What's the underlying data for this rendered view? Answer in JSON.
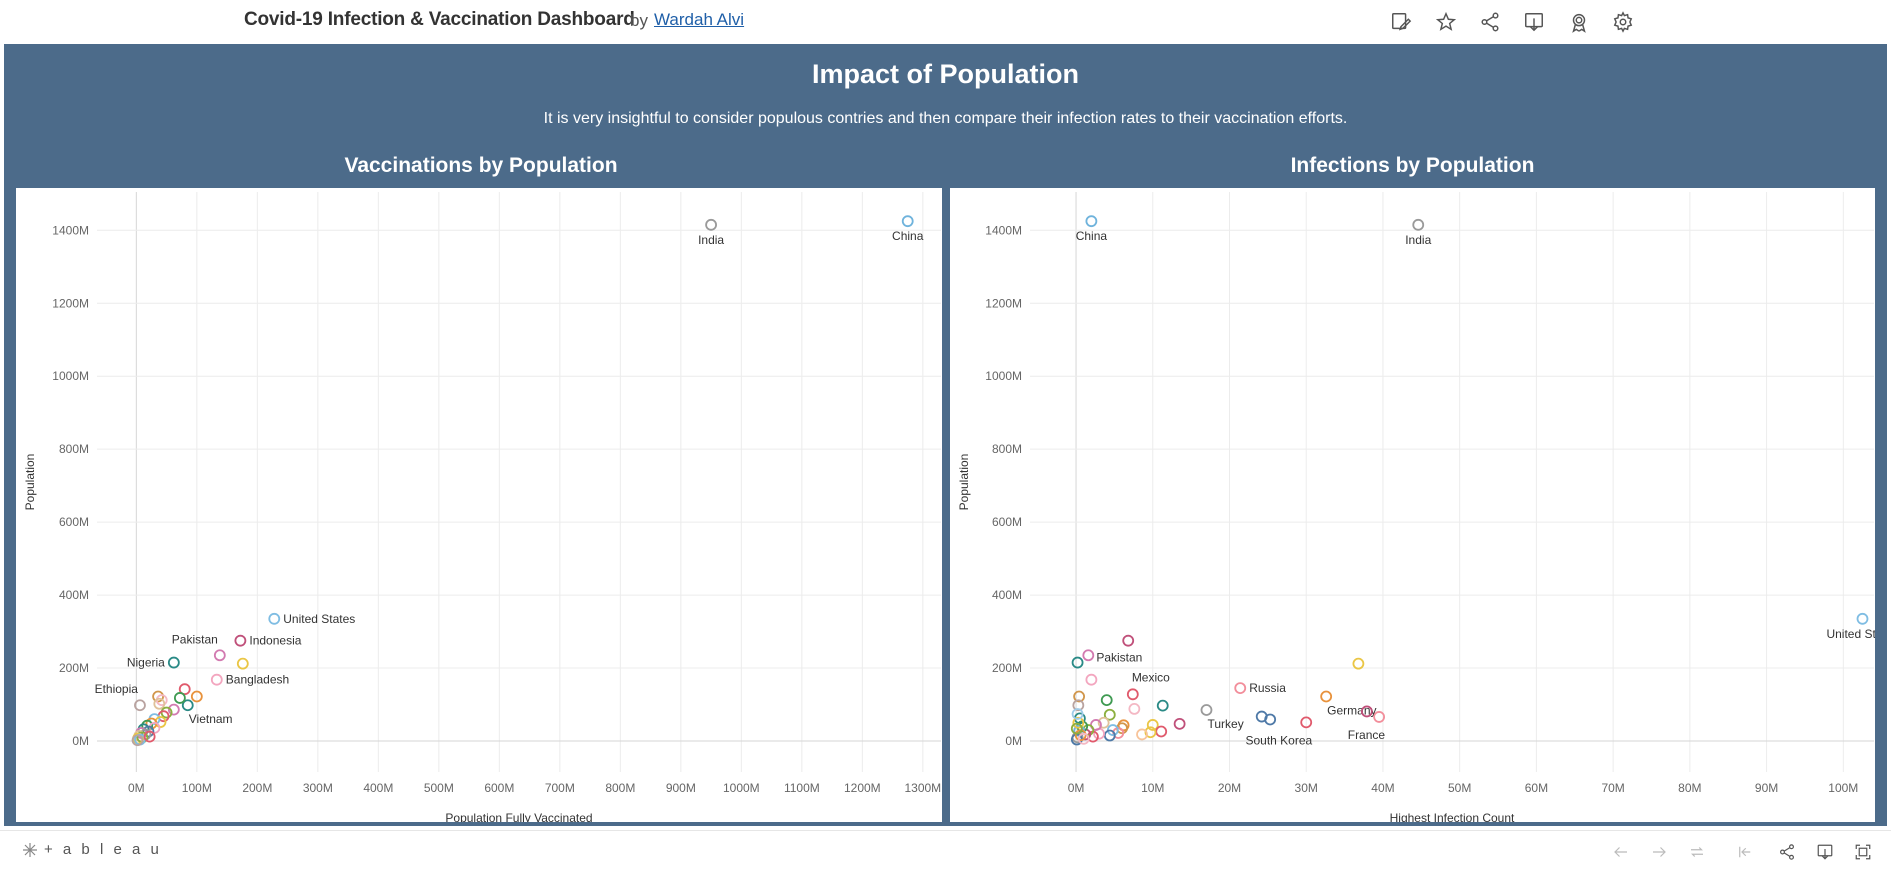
{
  "header": {
    "title": "Covid-19 Infection & Vaccination Dashboard",
    "by": "by",
    "author": "Wardah Alvi",
    "icons": [
      "edit-icon",
      "star-icon",
      "share-icon",
      "download-icon",
      "badge-icon",
      "gear-icon"
    ]
  },
  "dashboard": {
    "title": "Impact of Population",
    "subtitle": "It is very insightful to consider populous contries and then compare their infection rates to their vaccination efforts."
  },
  "footer": {
    "brand": "+ a b l e a u",
    "icons": [
      "undo-icon",
      "redo-icon",
      "revert-icon",
      "first-icon",
      "share-icon",
      "download-icon",
      "fullscreen-icon"
    ]
  },
  "chart_data": [
    {
      "type": "scatter",
      "title": "Vaccinations by Population",
      "xlabel": "Population Fully Vaccinated",
      "ylabel": "Population",
      "x_unit": "M",
      "y_unit": "M",
      "xlim": [
        -65,
        1330
      ],
      "ylim": [
        -85,
        1505
      ],
      "xticks": [
        0,
        100,
        200,
        300,
        400,
        500,
        600,
        700,
        800,
        900,
        1000,
        1100,
        1200,
        1300
      ],
      "yticks": [
        0,
        200,
        400,
        600,
        800,
        1000,
        1200,
        1400
      ],
      "grid": true,
      "points": [
        {
          "label": "China",
          "x": 1275,
          "y": 1425,
          "color": "#6fb3dc",
          "label_pos": "below"
        },
        {
          "label": "India",
          "x": 950,
          "y": 1415,
          "color": "#9a9a9a",
          "label_pos": "below"
        },
        {
          "label": "United States",
          "x": 228,
          "y": 335,
          "color": "#7fbde3",
          "label_pos": "right"
        },
        {
          "label": "Indonesia",
          "x": 172,
          "y": 275,
          "color": "#c0507a",
          "label_pos": "right"
        },
        {
          "label": "Pakistan",
          "x": 138,
          "y": 235,
          "color": "#d27ab0",
          "label_pos": "top-left"
        },
        {
          "label": "Nigeria",
          "x": 62,
          "y": 215,
          "color": "#2a8a86",
          "label_pos": "left"
        },
        {
          "label": "",
          "x": 176,
          "y": 212,
          "color": "#eac645"
        },
        {
          "label": "Bangladesh",
          "x": 133,
          "y": 168,
          "color": "#f3a6bf",
          "label_pos": "right"
        },
        {
          "label": "Ethiopia",
          "x": 6,
          "y": 98,
          "color": "#b9a3a0",
          "label_pos": "top-left"
        },
        {
          "label": "Vietnam",
          "x": 85,
          "y": 98,
          "color": "#2a8a86",
          "label_pos": "below-right"
        },
        {
          "label": "",
          "x": 80,
          "y": 142,
          "color": "#e05a6c"
        },
        {
          "label": "",
          "x": 100,
          "y": 122,
          "color": "#e8923c"
        },
        {
          "label": "",
          "x": 72,
          "y": 118,
          "color": "#3f9a52"
        },
        {
          "label": "",
          "x": 36,
          "y": 122,
          "color": "#d1964b"
        },
        {
          "label": "",
          "x": 42,
          "y": 112,
          "color": "#f4b8c4"
        },
        {
          "label": "",
          "x": 38,
          "y": 102,
          "color": "#e0c19a"
        },
        {
          "label": "",
          "x": 62,
          "y": 86,
          "color": "#d27ab0"
        },
        {
          "label": "",
          "x": 50,
          "y": 78,
          "color": "#8caf3f"
        },
        {
          "label": "",
          "x": 45,
          "y": 68,
          "color": "#e05a6c"
        },
        {
          "label": "",
          "x": 30,
          "y": 60,
          "color": "#7fbde3"
        },
        {
          "label": "",
          "x": 40,
          "y": 52,
          "color": "#eac645"
        },
        {
          "label": "",
          "x": 25,
          "y": 48,
          "color": "#e8923c"
        },
        {
          "label": "",
          "x": 18,
          "y": 42,
          "color": "#3f9a52"
        },
        {
          "label": "",
          "x": 30,
          "y": 36,
          "color": "#f3a6bf"
        },
        {
          "label": "",
          "x": 12,
          "y": 32,
          "color": "#2a8a86"
        },
        {
          "label": "",
          "x": 20,
          "y": 26,
          "color": "#4e79a7"
        },
        {
          "label": "",
          "x": 8,
          "y": 22,
          "color": "#d27ab0"
        },
        {
          "label": "",
          "x": 15,
          "y": 18,
          "color": "#9a9a9a"
        },
        {
          "label": "",
          "x": 5,
          "y": 14,
          "color": "#e0c19a"
        },
        {
          "label": "",
          "x": 10,
          "y": 10,
          "color": "#8caf3f"
        },
        {
          "label": "",
          "x": 3,
          "y": 7,
          "color": "#eac645"
        },
        {
          "label": "",
          "x": 6,
          "y": 4,
          "color": "#7fbde3"
        },
        {
          "label": "",
          "x": 2,
          "y": 2,
          "color": "#b9a3a0"
        },
        {
          "label": "",
          "x": 22,
          "y": 12,
          "color": "#e05a6c"
        }
      ]
    },
    {
      "type": "scatter",
      "title": "Infections by Population",
      "xlabel": "Highest Infection Count",
      "ylabel": "Population",
      "x_unit": "M",
      "y_unit": "M",
      "xlim": [
        -6,
        104
      ],
      "ylim": [
        -85,
        1505
      ],
      "xticks": [
        0,
        10,
        20,
        30,
        40,
        50,
        60,
        70,
        80,
        90,
        100
      ],
      "yticks": [
        0,
        200,
        400,
        600,
        800,
        1000,
        1200,
        1400
      ],
      "grid": true,
      "points": [
        {
          "label": "China",
          "x": 2,
          "y": 1425,
          "color": "#6fb3dc",
          "label_pos": "below"
        },
        {
          "label": "India",
          "x": 44.6,
          "y": 1415,
          "color": "#9a9a9a",
          "label_pos": "below"
        },
        {
          "label": "United States",
          "x": 102.5,
          "y": 335,
          "color": "#7fbde3",
          "label_pos": "below"
        },
        {
          "label": "Pakistan",
          "x": 1.6,
          "y": 235,
          "color": "#d27ab0",
          "label_pos": "right-below"
        },
        {
          "label": "",
          "x": 6.8,
          "y": 275,
          "color": "#c0507a"
        },
        {
          "label": "",
          "x": 0.2,
          "y": 215,
          "color": "#2a8a86"
        },
        {
          "label": "",
          "x": 36.8,
          "y": 212,
          "color": "#eac645"
        },
        {
          "label": "",
          "x": 2,
          "y": 168,
          "color": "#f3a6bf"
        },
        {
          "label": "Mexico",
          "x": 7.4,
          "y": 128,
          "color": "#e05a6c",
          "label_pos": "top-right"
        },
        {
          "label": "Russia",
          "x": 21.4,
          "y": 145,
          "color": "#f28e9b",
          "label_pos": "right"
        },
        {
          "label": "Germany",
          "x": 32.6,
          "y": 122,
          "color": "#e8923c",
          "label_pos": "below-right"
        },
        {
          "label": "Turkey",
          "x": 17,
          "y": 85,
          "color": "#9a9a9a",
          "label_pos": "below-right"
        },
        {
          "label": "France",
          "x": 39.5,
          "y": 66,
          "color": "#f28e9b",
          "label_pos": "below-left"
        },
        {
          "label": "South Korea",
          "x": 30,
          "y": 51,
          "color": "#e05a6c",
          "label_pos": "below-left"
        },
        {
          "label": "",
          "x": 37.9,
          "y": 81,
          "color": "#c0507a"
        },
        {
          "label": "",
          "x": 24.2,
          "y": 67,
          "color": "#4e79a7"
        },
        {
          "label": "",
          "x": 25.3,
          "y": 59,
          "color": "#4e79a7"
        },
        {
          "label": "",
          "x": 11.3,
          "y": 97,
          "color": "#2a8a86"
        },
        {
          "label": "",
          "x": 13.5,
          "y": 47,
          "color": "#c0507a"
        },
        {
          "label": "",
          "x": 4,
          "y": 112,
          "color": "#3f9a52"
        },
        {
          "label": "",
          "x": 7.6,
          "y": 88,
          "color": "#f4b8c4"
        },
        {
          "label": "",
          "x": 4.4,
          "y": 72,
          "color": "#8caf3f"
        },
        {
          "label": "",
          "x": 0.4,
          "y": 122,
          "color": "#d1964b"
        },
        {
          "label": "",
          "x": 0.3,
          "y": 98,
          "color": "#b9a3a0"
        },
        {
          "label": "",
          "x": 10,
          "y": 44,
          "color": "#eac645"
        },
        {
          "label": "",
          "x": 11.1,
          "y": 26,
          "color": "#e05a6c"
        },
        {
          "label": "",
          "x": 9.7,
          "y": 24,
          "color": "#eac645"
        },
        {
          "label": "",
          "x": 8.6,
          "y": 18,
          "color": "#f8c49a"
        },
        {
          "label": "",
          "x": 6.2,
          "y": 43,
          "color": "#e8923c"
        },
        {
          "label": "",
          "x": 6,
          "y": 35,
          "color": "#d1964b"
        },
        {
          "label": "",
          "x": 5.5,
          "y": 22,
          "color": "#f28e9b"
        },
        {
          "label": "",
          "x": 4.8,
          "y": 30,
          "color": "#7fbde3"
        },
        {
          "label": "",
          "x": 4.4,
          "y": 15,
          "color": "#4e79a7"
        },
        {
          "label": "",
          "x": 3.6,
          "y": 50,
          "color": "#e0c19a"
        },
        {
          "label": "",
          "x": 3,
          "y": 20,
          "color": "#f3a6bf"
        },
        {
          "label": "",
          "x": 2.6,
          "y": 44,
          "color": "#d27ab0"
        },
        {
          "label": "",
          "x": 2.2,
          "y": 12,
          "color": "#e05a6c"
        },
        {
          "label": "",
          "x": 1.6,
          "y": 30,
          "color": "#8caf3f"
        },
        {
          "label": "",
          "x": 1.2,
          "y": 18,
          "color": "#c0507a"
        },
        {
          "label": "",
          "x": 0.8,
          "y": 40,
          "color": "#3f9a52"
        },
        {
          "label": "",
          "x": 0.5,
          "y": 62,
          "color": "#2a8a86"
        },
        {
          "label": "",
          "x": 0.4,
          "y": 28,
          "color": "#6fb3dc"
        },
        {
          "label": "",
          "x": 0.3,
          "y": 50,
          "color": "#eac645"
        },
        {
          "label": "",
          "x": 0.2,
          "y": 10,
          "color": "#9a9a9a"
        },
        {
          "label": "",
          "x": 0.1,
          "y": 4,
          "color": "#4e79a7"
        },
        {
          "label": "",
          "x": 0.6,
          "y": 16,
          "color": "#e8923c"
        },
        {
          "label": "",
          "x": 1,
          "y": 6,
          "color": "#f4b8c4"
        },
        {
          "label": "",
          "x": 0.1,
          "y": 34,
          "color": "#8caf3f"
        },
        {
          "label": "",
          "x": 0.2,
          "y": 74,
          "color": "#a0cbe8"
        }
      ]
    }
  ]
}
